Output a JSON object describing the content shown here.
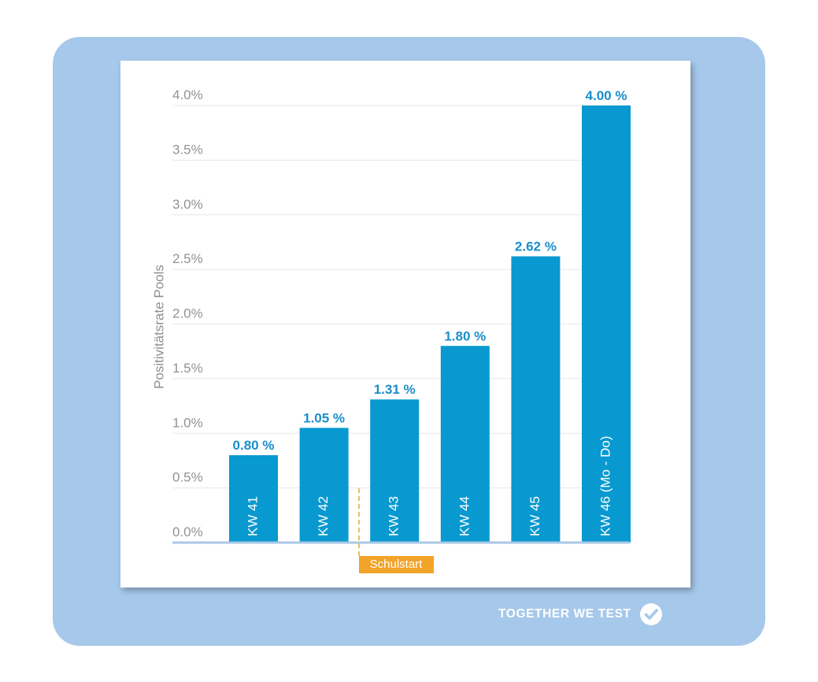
{
  "chart_data": {
    "type": "bar",
    "ylabel": "Positivitätsrate Pools",
    "ylim": [
      0,
      4.0
    ],
    "yticks": [
      "0.0%",
      "0.5%",
      "1.0%",
      "1.5%",
      "2.0%",
      "2.5%",
      "3.0%",
      "3.5%",
      "4.0%"
    ],
    "categories": [
      "KW 41",
      "KW 42",
      "KW 43",
      "KW 44",
      "KW 45",
      "KW 46 (Mo - Do)"
    ],
    "values": [
      0.8,
      1.05,
      1.31,
      1.8,
      2.62,
      4.0
    ],
    "value_labels": [
      "0.80 %",
      "1.05 %",
      "1.31 %",
      "1.80 %",
      "2.62 %",
      "4.00 %"
    ],
    "grid": true,
    "annotation": {
      "label": "Schulstart",
      "between": [
        "KW 42",
        "KW 43"
      ]
    },
    "colors": {
      "bar": "#0899d0",
      "value_label": "#1a8fca",
      "tick_label": "#939393",
      "grid": "#e6e6e6",
      "baseline": "#aac8e6",
      "annotation": "#f2a329"
    }
  },
  "brand": {
    "text": "TOGETHER WE TEST",
    "icon": "check-circle-icon"
  }
}
